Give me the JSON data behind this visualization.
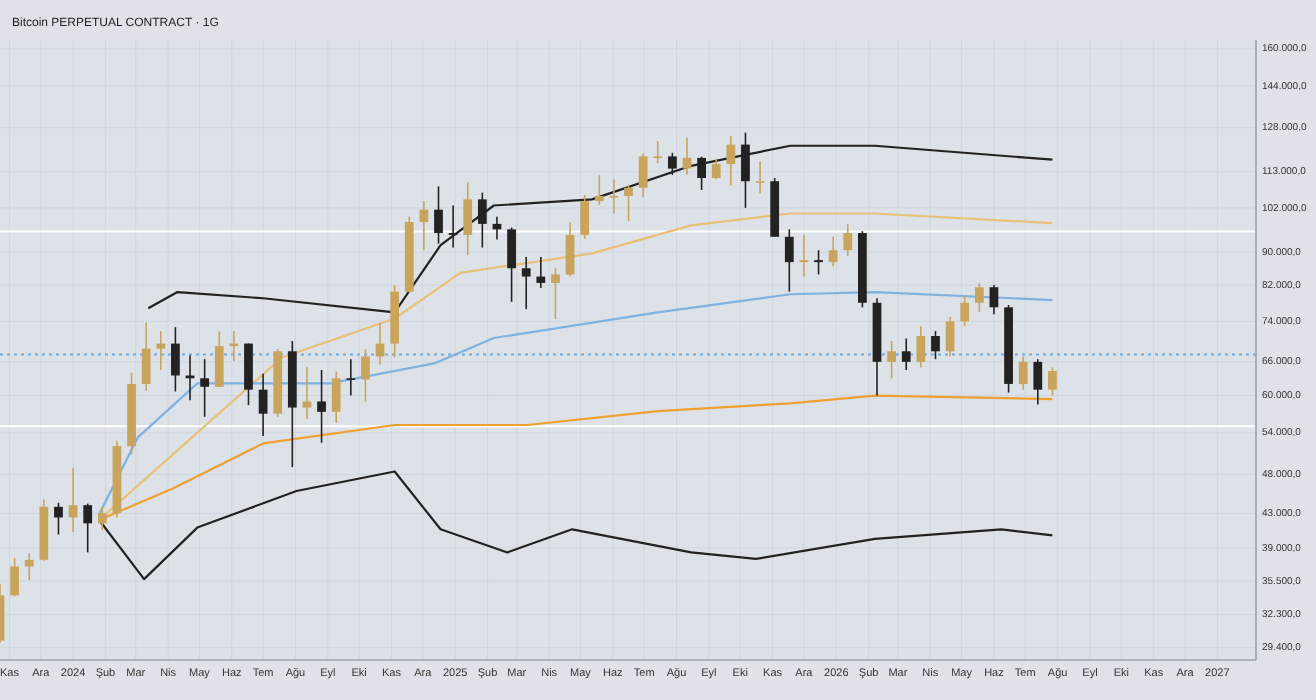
{
  "chart_data": {
    "type": "candlestick",
    "title": "Bitcoin PERPETUAL CONTRACT · 1G",
    "log": true,
    "grid": true,
    "x": [
      "2023-10-23",
      "2023-11-06",
      "2023-11-20",
      "2023-12-04",
      "2023-12-18",
      "2024-01-01",
      "2024-01-15",
      "2024-01-29",
      "2024-02-12",
      "2024-02-26",
      "2024-03-11",
      "2024-03-25",
      "2024-04-08",
      "2024-04-22",
      "2024-05-06",
      "2024-05-20",
      "2024-06-03",
      "2024-06-17",
      "2024-07-01",
      "2024-07-15",
      "2024-07-29",
      "2024-08-12",
      "2024-08-26",
      "2024-09-09",
      "2024-09-23",
      "2024-10-07",
      "2024-10-21",
      "2024-11-04",
      "2024-11-18",
      "2024-12-02",
      "2024-12-16",
      "2024-12-30",
      "2025-01-13",
      "2025-01-27",
      "2025-02-10",
      "2025-02-24",
      "2025-03-10",
      "2025-03-24",
      "2025-04-07",
      "2025-04-21",
      "2025-05-05",
      "2025-05-19",
      "2025-06-02",
      "2025-06-16",
      "2025-06-30",
      "2025-07-14",
      "2025-07-28",
      "2025-08-11",
      "2025-08-25",
      "2025-09-08",
      "2025-09-22",
      "2025-10-06",
      "2025-10-20",
      "2025-11-03",
      "2025-11-17",
      "2025-12-01",
      "2025-12-15",
      "2025-12-29",
      "2026-01-12",
      "2026-01-26",
      "2026-02-09",
      "2026-02-23",
      "2026-03-09",
      "2026-03-23",
      "2026-04-06",
      "2026-04-20",
      "2026-05-04",
      "2026-05-18",
      "2026-06-01",
      "2026-06-15",
      "2026-06-29",
      "2026-07-13",
      "2026-07-27"
    ],
    "ohlc": [
      [
        30000,
        35200,
        29800,
        34100
      ],
      [
        34100,
        37900,
        34000,
        37000
      ],
      [
        37000,
        38400,
        35600,
        37700
      ],
      [
        37700,
        44700,
        37600,
        43800
      ],
      [
        43800,
        44300,
        40500,
        42500
      ],
      [
        42500,
        48900,
        40800,
        44000
      ],
      [
        44000,
        44200,
        38500,
        41800
      ],
      [
        41800,
        43800,
        41000,
        43000
      ],
      [
        43000,
        52800,
        42500,
        52000
      ],
      [
        52000,
        64000,
        50800,
        62000
      ],
      [
        62000,
        73700,
        60800,
        68500
      ],
      [
        68500,
        72000,
        64500,
        69500
      ],
      [
        69500,
        72800,
        60700,
        63500
      ],
      [
        63500,
        67200,
        59200,
        63000
      ],
      [
        63000,
        66500,
        56500,
        61500
      ],
      [
        61500,
        71900,
        61500,
        69000
      ],
      [
        69000,
        72000,
        66100,
        69500
      ],
      [
        69500,
        69500,
        58400,
        61000
      ],
      [
        61000,
        63800,
        53500,
        57000
      ],
      [
        57000,
        68400,
        56500,
        68000
      ],
      [
        68000,
        70000,
        49000,
        58000
      ],
      [
        58000,
        65000,
        56100,
        59000
      ],
      [
        59000,
        64500,
        52500,
        57300
      ],
      [
        57300,
        64200,
        55500,
        63000
      ],
      [
        63000,
        66500,
        60000,
        62800
      ],
      [
        62800,
        68400,
        58900,
        67000
      ],
      [
        67000,
        73600,
        65500,
        69500
      ],
      [
        69500,
        82000,
        66800,
        80500
      ],
      [
        80500,
        99500,
        80300,
        98000
      ],
      [
        98000,
        104000,
        90500,
        101500
      ],
      [
        101500,
        108400,
        92200,
        95000
      ],
      [
        95000,
        102700,
        91200,
        94500
      ],
      [
        94500,
        109600,
        89300,
        104500
      ],
      [
        104500,
        106500,
        91200,
        97500
      ],
      [
        97500,
        99500,
        93300,
        96000
      ],
      [
        96000,
        96500,
        78200,
        86000
      ],
      [
        86000,
        88800,
        76600,
        84000
      ],
      [
        84000,
        88800,
        81300,
        82500
      ],
      [
        82500,
        86100,
        74500,
        84500
      ],
      [
        84500,
        97900,
        84000,
        94500
      ],
      [
        94500,
        105800,
        93400,
        104000
      ],
      [
        104000,
        111900,
        102800,
        105500
      ],
      [
        105500,
        110500,
        100400,
        105500
      ],
      [
        105500,
        108900,
        98200,
        108000
      ],
      [
        108000,
        119000,
        105100,
        118000
      ],
      [
        118000,
        123200,
        115700,
        118000
      ],
      [
        118000,
        119200,
        112000,
        114000
      ],
      [
        114000,
        124500,
        112000,
        117500
      ],
      [
        117500,
        117900,
        107300,
        111000
      ],
      [
        111000,
        117000,
        110600,
        115500
      ],
      [
        115500,
        125000,
        108600,
        122000
      ],
      [
        122000,
        126200,
        102000,
        110000
      ],
      [
        110000,
        116400,
        106300,
        110000
      ],
      [
        110000,
        111000,
        94000,
        94000
      ],
      [
        94000,
        96000,
        80500,
        87500
      ],
      [
        87500,
        94500,
        84000,
        88000
      ],
      [
        88000,
        90500,
        84500,
        87500
      ],
      [
        87500,
        94000,
        86500,
        90500
      ],
      [
        90500,
        97500,
        89000,
        95000
      ],
      [
        95000,
        95500,
        77000,
        78000
      ],
      [
        78000,
        79000,
        60000,
        66000
      ],
      [
        66000,
        70000,
        63000,
        68000
      ],
      [
        68000,
        70500,
        64500,
        66000
      ],
      [
        66000,
        73000,
        65000,
        71000
      ],
      [
        71000,
        72000,
        66500,
        68000
      ],
      [
        68000,
        75000,
        67000,
        74000
      ],
      [
        74000,
        79500,
        73000,
        78000
      ],
      [
        78000,
        82500,
        76000,
        81500
      ],
      [
        81500,
        82000,
        75500,
        77000
      ],
      [
        77000,
        77500,
        60500,
        62000
      ],
      [
        62000,
        67000,
        61000,
        66000
      ],
      [
        66000,
        66500,
        58500,
        61000
      ],
      [
        61000,
        65000,
        60000,
        64300
      ]
    ],
    "series": [
      {
        "type": "line",
        "color": "#222222",
        "x": [
          "2024-03-13",
          "2024-04-10",
          "2024-07-01",
          "2024-11-04",
          "2024-12-18",
          "2025-02-07",
          "2025-05-12",
          "2025-08-15",
          "2025-11-18",
          "2026-02-07",
          "2026-07-27"
        ],
        "values": [
          76800,
          80400,
          79000,
          75900,
          91800,
          102700,
          104500,
          114900,
          121600,
          121600,
          116900
        ]
      },
      {
        "type": "line",
        "color": "#222222",
        "x": [
          "2024-01-26",
          "2024-03-09",
          "2024-04-29",
          "2024-08-02",
          "2024-11-04",
          "2024-12-18",
          "2025-02-20",
          "2025-04-23",
          "2025-08-15",
          "2025-10-16",
          "2026-02-07",
          "2026-06-08",
          "2026-07-27"
        ],
        "values": [
          42200,
          35700,
          41300,
          45800,
          48400,
          41100,
          38500,
          41100,
          38500,
          37800,
          40000,
          41100,
          40400
        ]
      },
      {
        "type": "line",
        "color": "#e8c07a",
        "x": [
          "2024-01-26",
          "2024-07-19",
          "2024-11-04",
          "2025-01-06",
          "2025-05-12",
          "2025-08-15",
          "2025-11-18",
          "2026-02-07",
          "2026-07-27"
        ],
        "values": [
          42200,
          66800,
          74600,
          84900,
          89700,
          97100,
          100400,
          100400,
          97700
        ]
      },
      {
        "type": "line",
        "color": "#7fb2e0",
        "x": [
          "2024-01-26",
          "2024-03-03",
          "2024-04-29",
          "2024-09-03",
          "2024-12-12",
          "2025-02-07",
          "2025-07-14",
          "2025-11-18",
          "2026-02-07",
          "2026-07-27"
        ],
        "values": [
          42900,
          53300,
          62100,
          62100,
          65700,
          70600,
          75900,
          79900,
          80400,
          78600
        ]
      },
      {
        "type": "line",
        "color": "#f0a030",
        "x": [
          "2024-01-26",
          "2024-04-05",
          "2024-07-01",
          "2024-11-04",
          "2025-03-11",
          "2025-07-14",
          "2025-11-18",
          "2026-02-07",
          "2026-07-27"
        ],
        "values": [
          42200,
          46100,
          52400,
          55200,
          55200,
          57400,
          58700,
          60000,
          59400
        ]
      }
    ],
    "ref_lines": [
      {
        "axis": "y",
        "value": 95400,
        "color": "#ffffff",
        "line_style": "solid"
      },
      {
        "axis": "y",
        "value": 55000,
        "color": "#ffffff",
        "line_style": "solid"
      },
      {
        "axis": "y",
        "value": 67400,
        "color": "#6fa8dc",
        "line_style": "dotted"
      }
    ],
    "xlim": [
      "2023-10-23",
      "2027-02-07"
    ],
    "xticks": [
      {
        "value": "2023-11-01",
        "label": "Kas"
      },
      {
        "value": "2023-12-01",
        "label": "Ara"
      },
      {
        "value": "2024-01-01",
        "label": "2024"
      },
      {
        "value": "2024-02-01",
        "label": "Şub"
      },
      {
        "value": "2024-03-01",
        "label": "Mar"
      },
      {
        "value": "2024-04-01",
        "label": "Nis"
      },
      {
        "value": "2024-05-01",
        "label": "May"
      },
      {
        "value": "2024-06-01",
        "label": "Haz"
      },
      {
        "value": "2024-07-01",
        "label": "Tem"
      },
      {
        "value": "2024-08-01",
        "label": "Ağu"
      },
      {
        "value": "2024-09-01",
        "label": "Eyl"
      },
      {
        "value": "2024-10-01",
        "label": "Eki"
      },
      {
        "value": "2024-11-01",
        "label": "Kas"
      },
      {
        "value": "2024-12-01",
        "label": "Ara"
      },
      {
        "value": "2025-01-01",
        "label": "2025"
      },
      {
        "value": "2025-02-01",
        "label": "Şub"
      },
      {
        "value": "2025-03-01",
        "label": "Mar"
      },
      {
        "value": "2025-04-01",
        "label": "Nis"
      },
      {
        "value": "2025-05-01",
        "label": "May"
      },
      {
        "value": "2025-06-01",
        "label": "Haz"
      },
      {
        "value": "2025-07-01",
        "label": "Tem"
      },
      {
        "value": "2025-08-01",
        "label": "Ağu"
      },
      {
        "value": "2025-09-01",
        "label": "Eyl"
      },
      {
        "value": "2025-10-01",
        "label": "Eki"
      },
      {
        "value": "2025-11-01",
        "label": "Kas"
      },
      {
        "value": "2025-12-01",
        "label": "Ara"
      },
      {
        "value": "2026-01-01",
        "label": "2026"
      },
      {
        "value": "2026-02-01",
        "label": "Şub"
      },
      {
        "value": "2026-03-01",
        "label": "Mar"
      },
      {
        "value": "2026-04-01",
        "label": "Nis"
      },
      {
        "value": "2026-05-01",
        "label": "May"
      },
      {
        "value": "2026-06-01",
        "label": "Haz"
      },
      {
        "value": "2026-07-01",
        "label": "Tem"
      },
      {
        "value": "2026-08-01",
        "label": "Ağu"
      },
      {
        "value": "2026-09-01",
        "label": "Eyl"
      },
      {
        "value": "2026-10-01",
        "label": "Eki"
      },
      {
        "value": "2026-11-01",
        "label": "Kas"
      },
      {
        "value": "2026-12-01",
        "label": "Ara"
      },
      {
        "value": "2027-01-01",
        "label": "2027"
      }
    ],
    "ylim": [
      28400,
      164000
    ],
    "yticks": [
      {
        "value": 160000,
        "label": "160.000,0"
      },
      {
        "value": 144000,
        "label": "144.000,0"
      },
      {
        "value": 128000,
        "label": "128.000,0"
      },
      {
        "value": 113000,
        "label": "113.000,0"
      },
      {
        "value": 102000,
        "label": "102.000,0"
      },
      {
        "value": 90000,
        "label": "90.000,0"
      },
      {
        "value": 82000,
        "label": "82.000,0"
      },
      {
        "value": 74000,
        "label": "74.000,0"
      },
      {
        "value": 66000,
        "label": "66.000,0"
      },
      {
        "value": 60000,
        "label": "60.000,0"
      },
      {
        "value": 54000,
        "label": "54.000,0"
      },
      {
        "value": 48000,
        "label": "48.000,0"
      },
      {
        "value": 43000,
        "label": "43.000,0"
      },
      {
        "value": 39000,
        "label": "39.000,0"
      },
      {
        "value": 35500,
        "label": "35.500,0"
      },
      {
        "value": 32300,
        "label": "32.300,0"
      },
      {
        "value": 29400,
        "label": "29.400,0"
      }
    ]
  }
}
